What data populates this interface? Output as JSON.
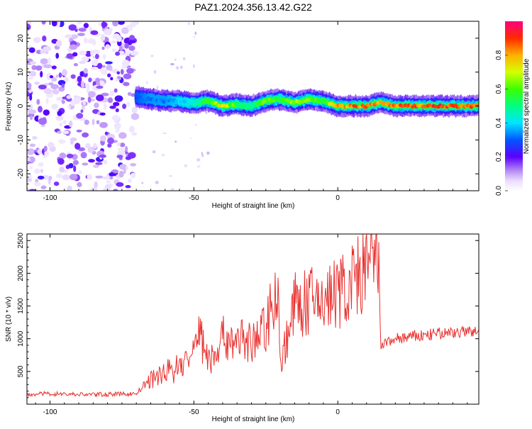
{
  "page_title": "PAZ1.2024.356.13.42.G22",
  "chart_data": [
    {
      "type": "heatmap",
      "title": "PAZ1.2024.356.13.42.G22",
      "xlabel": "Height of straight line (km)",
      "ylabel": "Frequency (Hz)",
      "xlim": [
        -108,
        49
      ],
      "ylim": [
        -25,
        25
      ],
      "xticks": [
        -100,
        -50,
        0
      ],
      "yticks": [
        -20,
        -10,
        0,
        10,
        20
      ],
      "colorbar": {
        "label": "Normalized spectral amplitude",
        "range": [
          0,
          1
        ],
        "ticks": [
          0.0,
          0.2,
          0.4,
          0.6,
          0.8
        ]
      },
      "ridge": {
        "x": [
          -70,
          -65,
          -60,
          -55,
          -50,
          -45,
          -40,
          -35,
          -30,
          -25,
          -20,
          -15,
          -10,
          -5,
          0,
          5,
          10,
          15,
          20,
          25,
          30,
          35,
          40,
          45,
          49
        ],
        "y": [
          2.5,
          2.0,
          1.5,
          1.5,
          0.8,
          1.5,
          0.0,
          0.5,
          0.0,
          1.5,
          2.0,
          1.0,
          2.0,
          1.5,
          0.0,
          0.0,
          0.0,
          1.0,
          0.0,
          0.0,
          0.0,
          0.0,
          0.0,
          0.0,
          0.0
        ],
        "peak_amplitude": [
          0.3,
          0.35,
          0.35,
          0.4,
          0.45,
          0.6,
          0.8,
          0.6,
          0.5,
          0.7,
          0.6,
          0.75,
          0.7,
          0.6,
          0.85,
          0.9,
          0.9,
          0.85,
          0.9,
          0.95,
          0.9,
          0.95,
          0.95,
          0.9,
          0.9
        ]
      },
      "noise_region_x": [
        -108,
        -70
      ]
    },
    {
      "type": "line",
      "xlabel": "Height of straight line (km)",
      "ylabel": "SNR (10 * v/v)",
      "xlim": [
        -108,
        49
      ],
      "ylim": [
        0,
        2600
      ],
      "xticks": [
        -100,
        -50,
        0
      ],
      "yticks": [
        500,
        1000,
        1500,
        2000,
        2500
      ],
      "color": "#e8312f",
      "x": [
        -108,
        -100,
        -90,
        -80,
        -70,
        -66,
        -60,
        -55,
        -50,
        -49,
        -45,
        -40,
        -35,
        -30,
        -25,
        -21,
        -20,
        -15,
        -10,
        -5,
        0,
        5,
        10,
        14,
        15,
        20,
        30,
        40,
        49
      ],
      "y": [
        150,
        160,
        150,
        150,
        160,
        350,
        500,
        600,
        750,
        1200,
        700,
        1000,
        1050,
        900,
        1200,
        1900,
        600,
        1500,
        1550,
        1600,
        1700,
        1850,
        2100,
        2200,
        900,
        1000,
        1050,
        1100,
        1100
      ]
    }
  ]
}
